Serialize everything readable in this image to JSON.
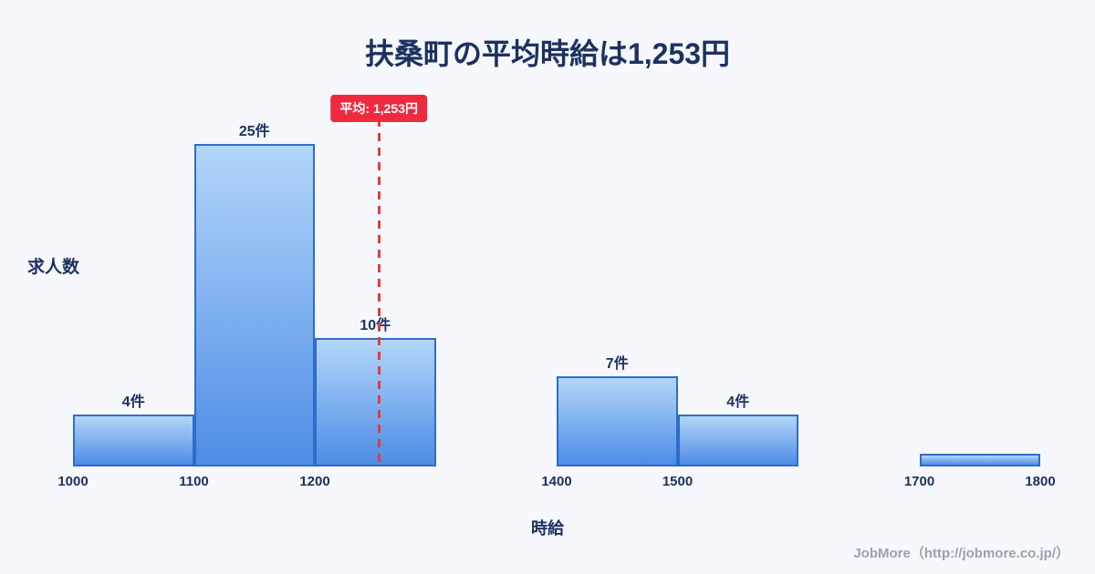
{
  "page": {
    "background": "#f6f8fd"
  },
  "header": {
    "title": "扶桑町の平均時給は1,253円"
  },
  "footer": {
    "text": "JobMore（http://jobmore.co.jp/）"
  },
  "chart_data": {
    "type": "bar",
    "title": "扶桑町の平均時給は1,253円",
    "xlabel": "時給",
    "ylabel": "求人数",
    "x_range": [
      1000,
      1800
    ],
    "ylim": [
      0,
      27
    ],
    "grid": false,
    "legend": "none",
    "x_ticks": [
      "1000",
      "1100",
      "1200",
      "1400",
      "1500",
      "1700",
      "1800"
    ],
    "bins": [
      {
        "x0": 1000,
        "x1": 1100,
        "count": 4,
        "label": "4件"
      },
      {
        "x0": 1100,
        "x1": 1200,
        "count": 25,
        "label": "25件"
      },
      {
        "x0": 1200,
        "x1": 1300,
        "count": 10,
        "label": "10件"
      },
      {
        "x0": 1400,
        "x1": 1500,
        "count": 7,
        "label": "7件"
      },
      {
        "x0": 1500,
        "x1": 1600,
        "count": 4,
        "label": "4件"
      },
      {
        "x0": 1700,
        "x1": 1800,
        "count": 1,
        "label": ""
      }
    ],
    "mean": {
      "value": 1253,
      "label": "平均: 1,253円"
    },
    "colors": {
      "bar_fill_top": "#b3d6f9",
      "bar_fill_bottom": "#4e8ce6",
      "bar_border": "#2e6dc9",
      "mean_line": "#e23c3c",
      "mean_badge_bg": "#ee2b3e",
      "text": "#1d3160",
      "footer_text": "#98a1b3"
    }
  }
}
